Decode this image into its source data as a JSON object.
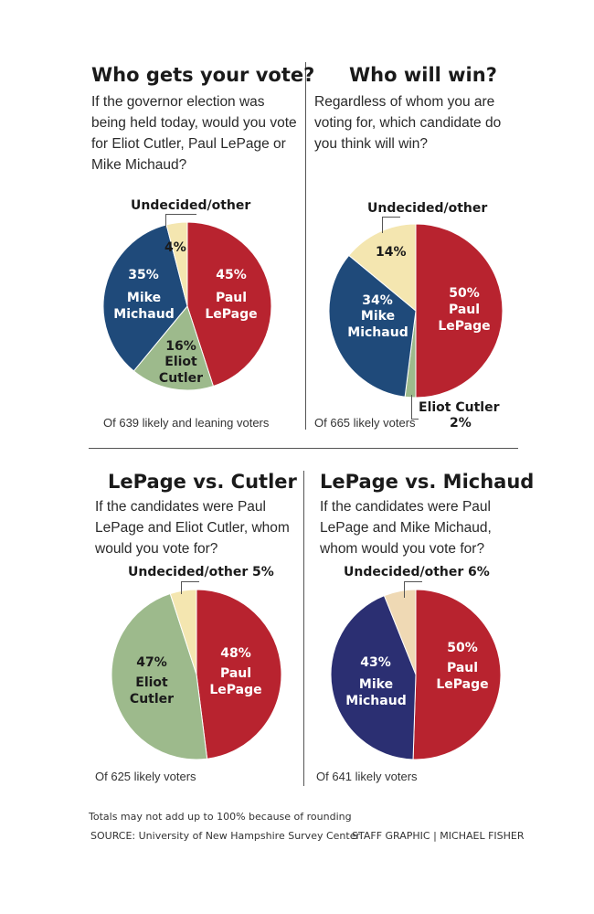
{
  "chart_data": [
    {
      "type": "pie",
      "title": "Who gets your vote?",
      "subtitle": "If the governor election was being held today, would you vote for Eliot Cutler, Paul LePage or Mike Michaud?",
      "note": "Of 639 likely and leaning voters",
      "slices": [
        {
          "name": "Paul LePage",
          "value": 45,
          "label": "45%",
          "color": "#b8232f"
        },
        {
          "name": "Eliot Cutler",
          "value": 16,
          "label": "16%",
          "color": "#9dba8c"
        },
        {
          "name": "Mike Michaud",
          "value": 35,
          "label": "35%",
          "color": "#1f4a7a"
        },
        {
          "name": "Undecided/other",
          "value": 4,
          "label": "4%",
          "color": "#f4e6b0"
        }
      ]
    },
    {
      "type": "pie",
      "title": "Who will win?",
      "subtitle": "Regardless of whom you are voting for, which candidate do you think will win?",
      "note": "Of 665 likely voters",
      "slices": [
        {
          "name": "Paul LePage",
          "value": 50,
          "label": "50%",
          "color": "#b8232f"
        },
        {
          "name": "Eliot Cutler",
          "value": 2,
          "label": "2%",
          "color": "#9dba8c"
        },
        {
          "name": "Mike Michaud",
          "value": 34,
          "label": "34%",
          "color": "#1f4a7a"
        },
        {
          "name": "Undecided/other",
          "value": 14,
          "label": "14%",
          "color": "#f4e6b0"
        }
      ]
    },
    {
      "type": "pie",
      "title": "LePage vs. Cutler",
      "subtitle": "If the candidates were Paul LePage and Eliot Cutler, whom would you vote for?",
      "note": "Of 625 likely voters",
      "slices": [
        {
          "name": "Paul LePage",
          "value": 48,
          "label": "48%",
          "color": "#b8232f"
        },
        {
          "name": "Eliot Cutler",
          "value": 47,
          "label": "47%",
          "color": "#9dba8c"
        },
        {
          "name": "Undecided/other",
          "value": 5,
          "label": "5%",
          "color": "#f4e6b0"
        }
      ]
    },
    {
      "type": "pie",
      "title": "LePage vs. Michaud",
      "subtitle": "If the candidates were Paul LePage and Mike Michaud, whom would you vote for?",
      "note": "Of 641 likely voters",
      "slices": [
        {
          "name": "Paul LePage",
          "value": 50,
          "label": "50%",
          "color": "#b8232f"
        },
        {
          "name": "Mike Michaud",
          "value": 43,
          "label": "43%",
          "color": "#2b2f72"
        },
        {
          "name": "Undecided/other",
          "value": 6,
          "label": "6%",
          "color": "#efd9b4"
        }
      ]
    }
  ],
  "names": {
    "lepage": [
      "Paul",
      "LePage"
    ],
    "michaud": [
      "Mike",
      "Michaud"
    ],
    "cutler": [
      "Eliot",
      "Cutler"
    ],
    "cutler_one": "Eliot Cutler",
    "undecided": "Undecided/other"
  },
  "footer": {
    "rounding": "Totals may not add up to 100% because of rounding",
    "source": "SOURCE: University of New Hampshire Survey Center",
    "credit": "STAFF GRAPHIC | MICHAEL FISHER"
  }
}
